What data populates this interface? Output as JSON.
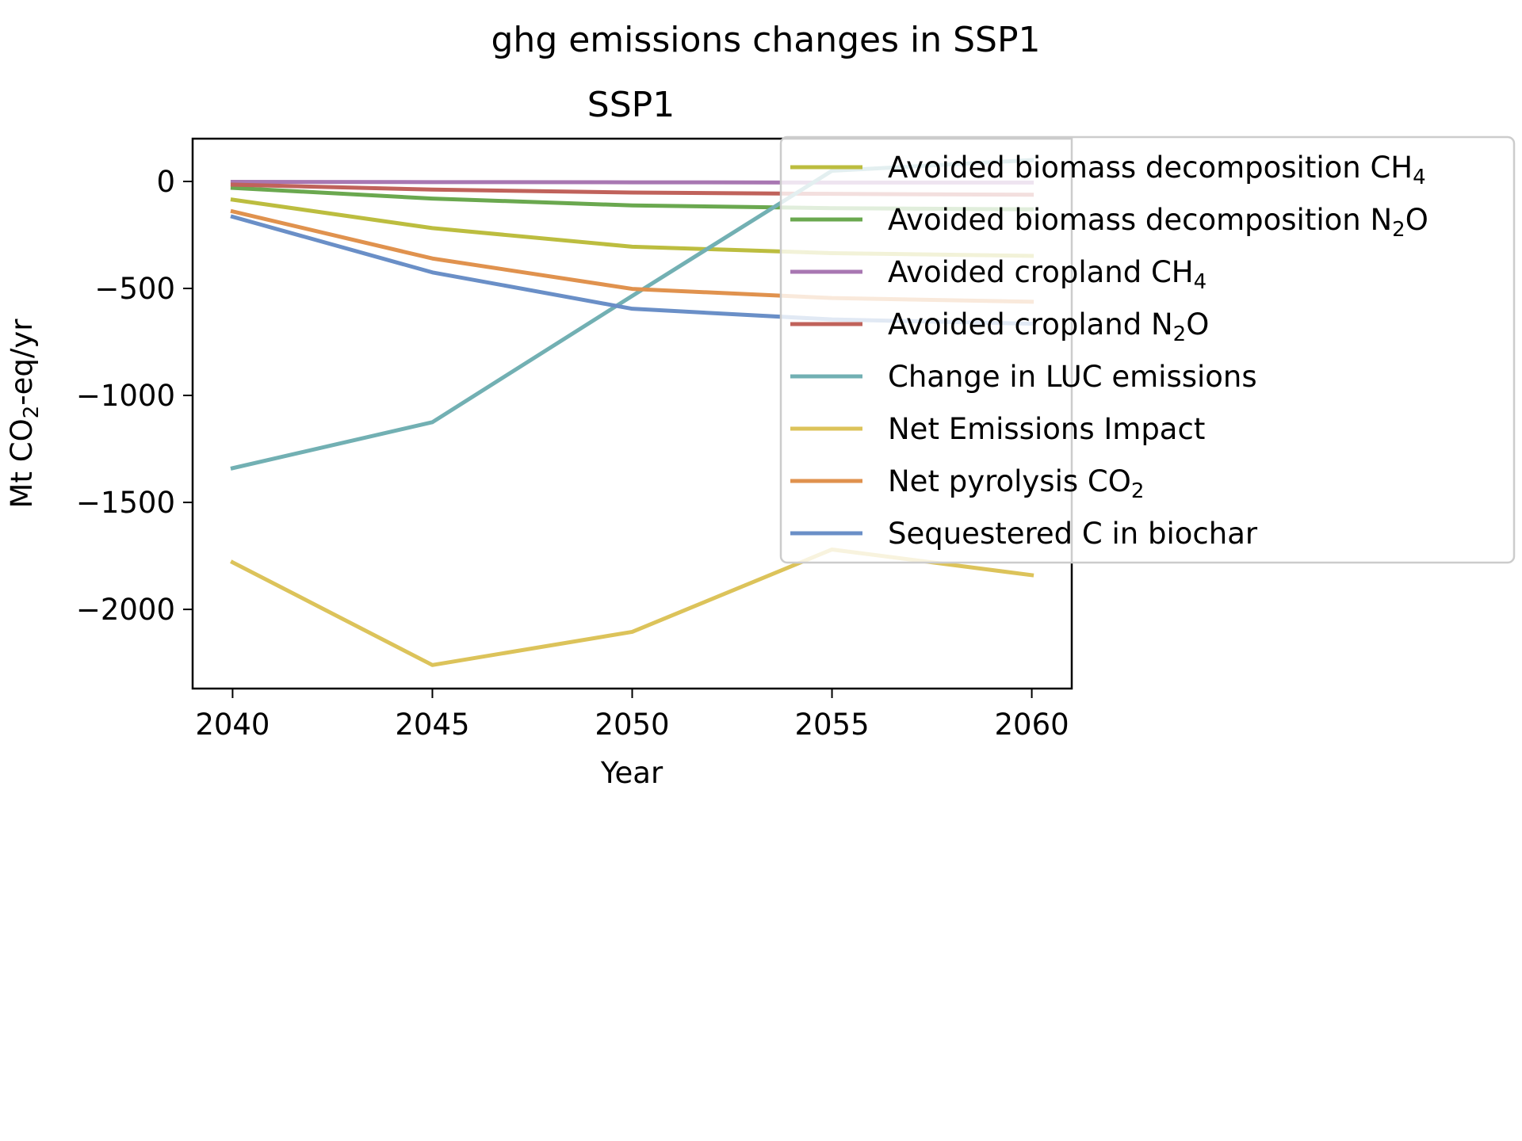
{
  "chart_data": {
    "type": "line",
    "suptitle": "ghg emissions changes in SSP1",
    "title": "SSP1",
    "xlabel": "Year",
    "ylabel": "Mt CO2-eq/yr",
    "ylabel_parts": [
      "Mt CO",
      "2",
      "-eq/yr"
    ],
    "xlim": [
      2039,
      2061
    ],
    "ylim": [
      -2370,
      200
    ],
    "xticks": [
      2040,
      2045,
      2050,
      2055,
      2060
    ],
    "yticks": [
      0,
      -500,
      -1000,
      -1500,
      -2000
    ],
    "ytick_labels": [
      "0",
      "−500",
      "−1000",
      "−1500",
      "−2000"
    ],
    "grid": false,
    "legend_placement": "upper-right, outside",
    "x": [
      2040,
      2045,
      2050,
      2055,
      2060
    ],
    "series": [
      {
        "name": "Avoided biomass decomposition CH4",
        "name_parts": [
          "Avoided biomass decomposition CH",
          "4",
          ""
        ],
        "color": "#bcbd3f",
        "values": [
          -85,
          -218,
          -305,
          -335,
          -348
        ]
      },
      {
        "name": "Avoided biomass decomposition N2O",
        "name_parts": [
          "Avoided biomass decomposition N",
          "2",
          "O"
        ],
        "color": "#6aa84f",
        "values": [
          -30,
          -80,
          -112,
          -125,
          -130
        ]
      },
      {
        "name": "Avoided cropland CH4",
        "name_parts": [
          "Avoided cropland CH",
          "4",
          ""
        ],
        "color": "#a877b2",
        "values": [
          -2,
          -3,
          -4,
          -5,
          -5
        ]
      },
      {
        "name": "Avoided cropland N2O",
        "name_parts": [
          "Avoided cropland N",
          "2",
          "O"
        ],
        "color": "#c0625b",
        "values": [
          -15,
          -38,
          -52,
          -58,
          -62
        ]
      },
      {
        "name": "Change in LUC emissions",
        "name_parts": [
          "Change in LUC emissions",
          "",
          ""
        ],
        "color": "#72b0b3",
        "values": [
          -1340,
          -1125,
          -535,
          50,
          100
        ]
      },
      {
        "name": "Net Emissions Impact",
        "name_parts": [
          "Net Emissions Impact",
          "",
          ""
        ],
        "color": "#dcc35a",
        "values": [
          -1780,
          -2260,
          -2105,
          -1720,
          -1840
        ]
      },
      {
        "name": "Net pyrolysis CO2",
        "name_parts": [
          "Net pyrolysis CO",
          "2",
          ""
        ],
        "color": "#e0924e",
        "values": [
          -140,
          -360,
          -502,
          -545,
          -562
        ]
      },
      {
        "name": "Sequestered C in biochar",
        "name_parts": [
          "Sequestered C in biochar",
          "",
          ""
        ],
        "color": "#6a8fc7",
        "values": [
          -165,
          -425,
          -595,
          -645,
          -665
        ]
      }
    ]
  }
}
